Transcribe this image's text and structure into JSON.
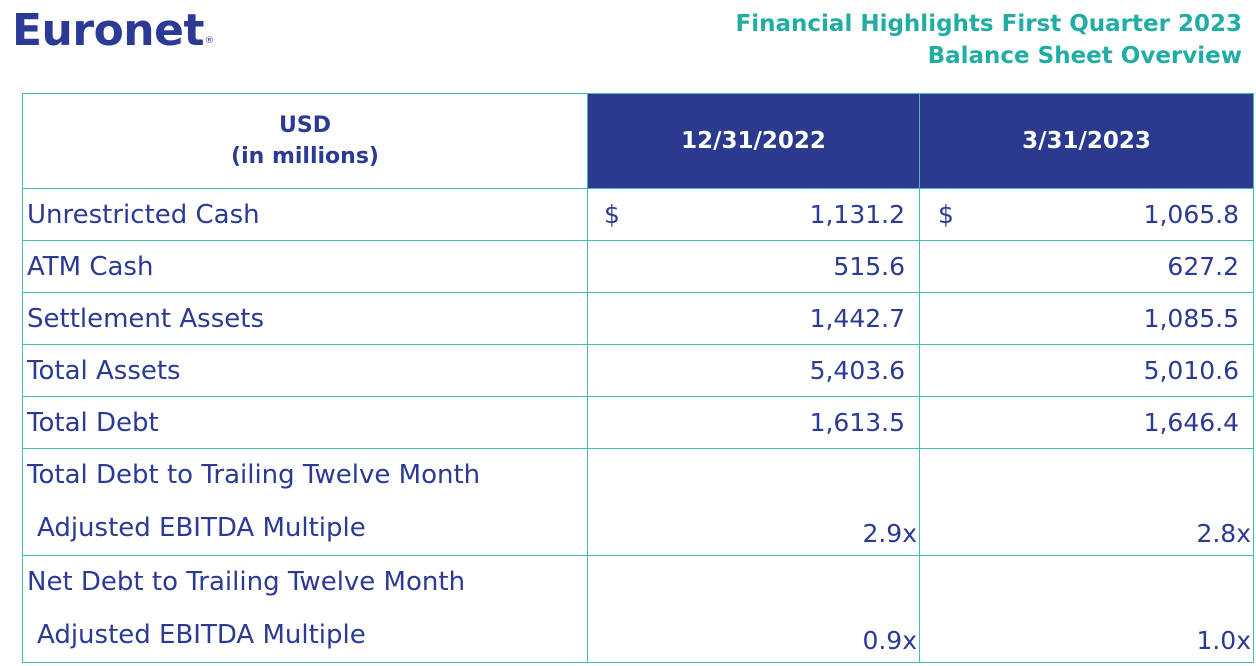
{
  "header": {
    "logo_text": "Euronet",
    "logo_mark": "®",
    "title_line1": "Financial Highlights First Quarter 2023",
    "title_line2": "Balance Sheet Overview"
  },
  "table": {
    "col_header_line1": "USD",
    "col_header_line2": "(in millions)",
    "columns": [
      "12/31/2022",
      "3/31/2023"
    ],
    "currency_symbol": "$",
    "rows": [
      {
        "label": "Unrestricted Cash",
        "v1": "1,131.2",
        "v2": "1,065.8"
      },
      {
        "label": "ATM Cash",
        "v1": "515.6",
        "v2": "627.2"
      },
      {
        "label": "Settlement Assets",
        "v1": "1,442.7",
        "v2": "1,085.5"
      },
      {
        "label": "Total Assets",
        "v1": "5,403.6",
        "v2": "5,010.6"
      },
      {
        "label": "Total Debt",
        "v1": "1,613.5",
        "v2": "1,646.4"
      },
      {
        "label_line1": "Total Debt to Trailing Twelve Month",
        "label_line2": "Adjusted EBITDA Multiple",
        "v1": "2.9x",
        "v2": "2.8x"
      },
      {
        "label_line1": "Net Debt to Trailing Twelve Month",
        "label_line2": "Adjusted EBITDA Multiple",
        "v1": "0.9x",
        "v2": "1.0x"
      }
    ]
  },
  "colors": {
    "brand_navy": "#2b3a94",
    "accent_teal": "#21ada4",
    "border_teal": "#43bdb3"
  }
}
